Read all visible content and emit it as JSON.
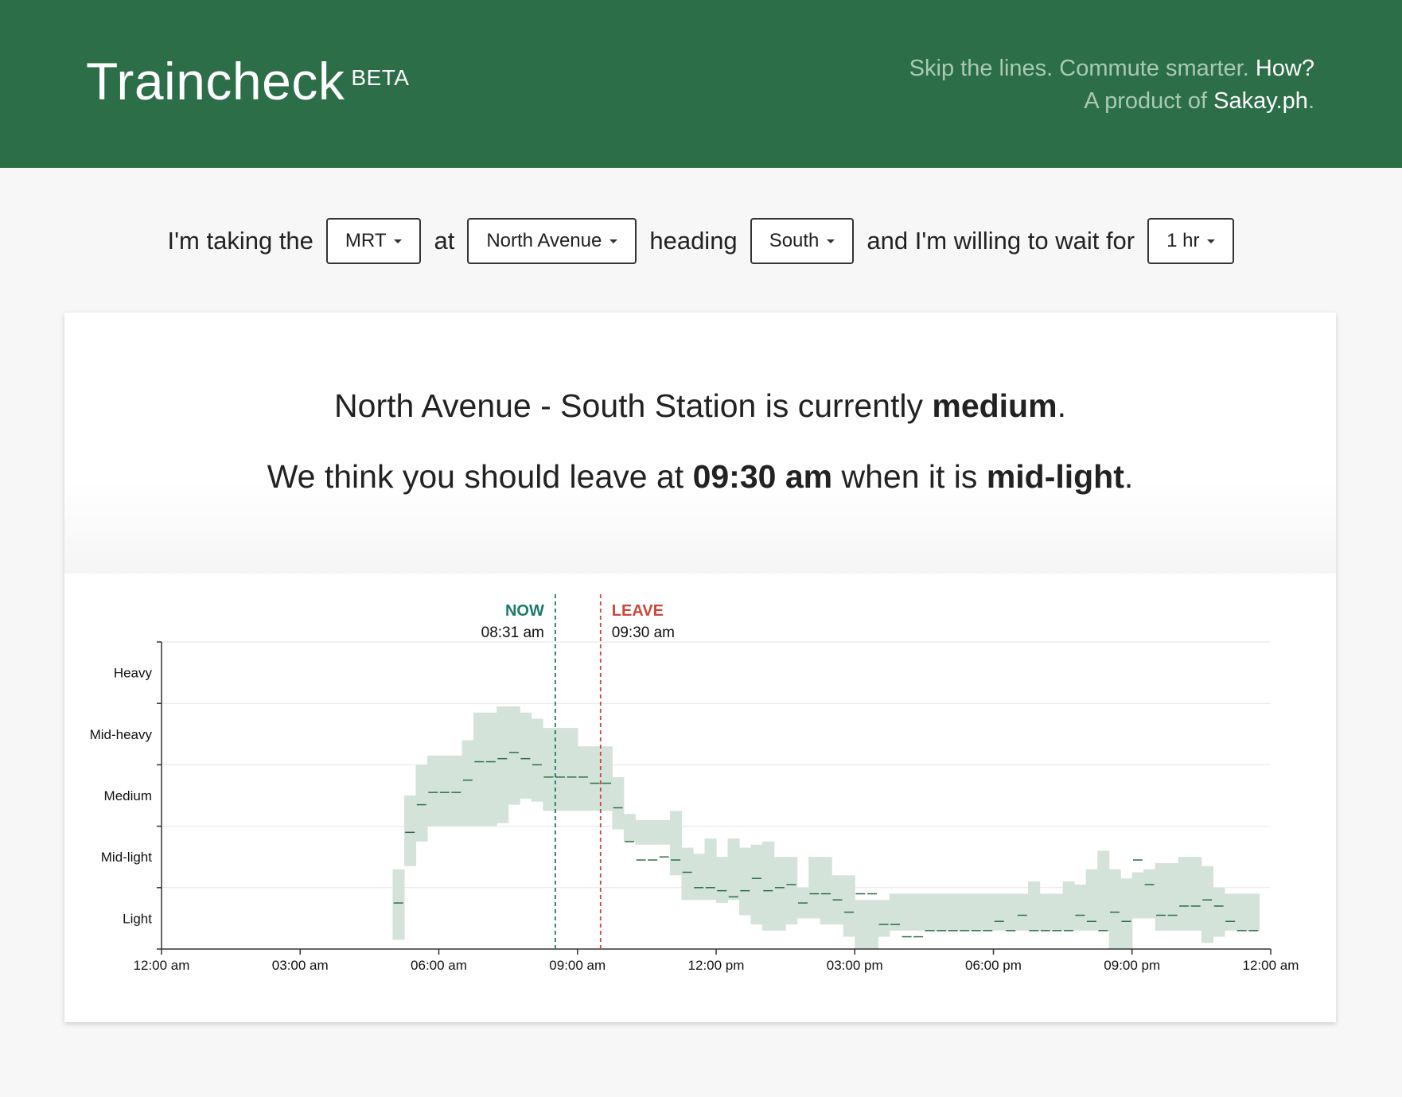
{
  "header": {
    "brand": "Traincheck",
    "badge": "BETA",
    "tagline_text": "Skip the lines. Commute smarter.",
    "tagline_link": "How?",
    "product_prefix": "A product of",
    "product_link": "Sakay.ph",
    "product_suffix": "."
  },
  "selector": {
    "text1": "I'm taking the",
    "line_value": "MRT",
    "text2": "at",
    "station_value": "North Avenue",
    "text3": "heading",
    "direction_value": "South",
    "text4": "and I'm willing to wait for",
    "wait_value": "1 hr"
  },
  "status": {
    "prefix": "North Avenue - South Station is currently",
    "level": "medium",
    "end": ".",
    "advice_prefix": "We think you should leave at",
    "leave_time": "09:30 am",
    "advice_mid": "when it is",
    "leave_level": "mid-light",
    "advice_end": "."
  },
  "colors": {
    "header_bg": "#2c6e47",
    "band_fill": "#d4e3da",
    "median_line": "#2c6e47",
    "now_color": "#1a7a6e",
    "leave_color": "#c8493a"
  },
  "chart_data": {
    "type": "area",
    "title": "",
    "xlabel": "",
    "ylabel": "",
    "x_unit": "hours since midnight",
    "xlim": [
      0,
      24
    ],
    "ylim": [
      0,
      5
    ],
    "y_tick_labels": [
      "Light",
      "Mid-light",
      "Medium",
      "Mid-heavy",
      "Heavy"
    ],
    "x_tick_values": [
      0,
      3,
      6,
      9,
      12,
      15,
      18,
      21,
      24
    ],
    "x_tick_labels": [
      "12:00 am",
      "03:00 am",
      "06:00 am",
      "09:00 am",
      "12:00 pm",
      "03:00 pm",
      "06:00 pm",
      "09:00 pm",
      "12:00 am"
    ],
    "markers": [
      {
        "name": "now",
        "label": "NOW",
        "time_label": "08:31 am",
        "x": 8.52
      },
      {
        "name": "leave",
        "label": "LEAVE",
        "time_label": "09:30 am",
        "x": 9.5
      }
    ],
    "series": {
      "name": "crowd level range",
      "start": 5.0,
      "step": 0.25,
      "low": [
        0.15,
        1.35,
        1.75,
        2.0,
        2.0,
        2.0,
        2.0,
        2.0,
        2.0,
        2.05,
        2.35,
        2.45,
        2.4,
        2.25,
        2.25,
        2.25,
        2.25,
        2.25,
        2.25,
        1.95,
        1.75,
        1.7,
        1.7,
        1.7,
        1.2,
        0.8,
        0.8,
        0.8,
        0.75,
        0.8,
        0.55,
        0.4,
        0.3,
        0.3,
        0.4,
        0.5,
        0.5,
        0.4,
        0.4,
        0.2,
        0.0,
        0.0,
        0.2,
        0.3,
        0.3,
        0.3,
        0.3,
        0.3,
        0.3,
        0.3,
        0.3,
        0.3,
        0.3,
        0.3,
        0.3,
        0.3,
        0.3,
        0.3,
        0.3,
        0.3,
        0.3,
        0.3,
        0.0,
        0.0,
        0.5,
        0.5,
        0.3,
        0.3,
        0.3,
        0.3,
        0.1,
        0.2,
        0.3,
        0.3,
        0.3
      ],
      "high": [
        1.3,
        2.5,
        3.0,
        3.15,
        3.15,
        3.15,
        3.4,
        3.85,
        3.85,
        3.95,
        3.95,
        3.85,
        3.75,
        3.6,
        3.6,
        3.6,
        3.3,
        3.3,
        3.3,
        2.8,
        2.2,
        2.1,
        2.1,
        2.1,
        2.25,
        1.65,
        1.55,
        1.8,
        1.5,
        1.8,
        1.65,
        1.7,
        1.75,
        1.5,
        1.5,
        1.0,
        1.5,
        1.5,
        1.2,
        1.2,
        0.8,
        0.8,
        0.8,
        0.9,
        0.9,
        0.9,
        0.9,
        0.9,
        0.9,
        0.9,
        0.9,
        0.9,
        0.9,
        0.9,
        0.9,
        1.1,
        0.9,
        0.9,
        1.1,
        1.05,
        1.3,
        1.6,
        1.3,
        1.15,
        1.25,
        1.3,
        1.4,
        1.4,
        1.5,
        1.5,
        1.35,
        1.0,
        0.9,
        0.9,
        0.9
      ],
      "median": [
        0.75,
        1.9,
        2.35,
        2.55,
        2.55,
        2.55,
        2.75,
        3.05,
        3.05,
        3.1,
        3.2,
        3.1,
        3.0,
        2.8,
        2.8,
        2.8,
        2.8,
        2.7,
        2.7,
        2.3,
        1.75,
        1.45,
        1.45,
        1.5,
        1.45,
        1.25,
        1.0,
        1.0,
        0.95,
        0.85,
        0.95,
        1.15,
        0.95,
        1.0,
        1.05,
        0.75,
        0.9,
        0.9,
        0.8,
        0.6,
        0.9,
        0.9,
        0.4,
        0.4,
        0.2,
        0.2,
        0.3,
        0.3,
        0.3,
        0.3,
        0.3,
        0.3,
        0.45,
        0.3,
        0.55,
        0.3,
        0.3,
        0.3,
        0.3,
        0.55,
        0.45,
        0.3,
        0.6,
        0.45,
        1.45,
        1.05,
        0.55,
        0.55,
        0.7,
        0.7,
        0.8,
        0.7,
        0.45,
        0.3,
        0.3
      ]
    }
  }
}
